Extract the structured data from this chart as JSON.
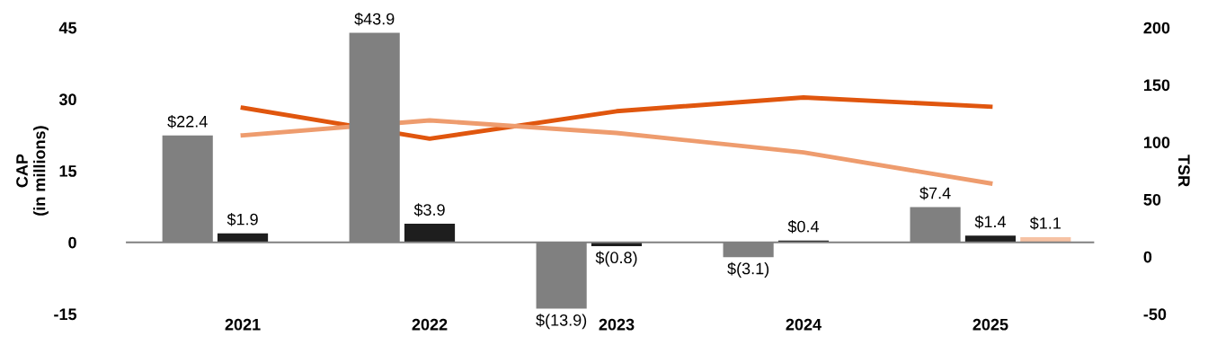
{
  "chart_data": {
    "type": "bar",
    "ylabel": "CAP\n(in millions)",
    "y2label": "TSR",
    "categories": [
      "2021",
      "2022",
      "2023",
      "2024",
      "2025"
    ],
    "ylim": [
      -15,
      45
    ],
    "yticks": [
      -15,
      0,
      15,
      30,
      45
    ],
    "y2lim": [
      -50,
      200
    ],
    "y2ticks": [
      -50,
      0,
      50,
      100,
      150,
      200
    ],
    "legend": false,
    "series": [
      {
        "color": "#808080",
        "values": [
          22.4,
          43.9,
          -13.9,
          -3.1,
          7.4
        ],
        "value_labels": [
          "$22.4",
          "$43.9",
          "$(13.9)",
          "$(3.1)",
          "$7.4"
        ]
      },
      {
        "color": "#1e1e1e",
        "values": [
          1.9,
          3.9,
          -0.8,
          0.4,
          1.4
        ],
        "value_labels": [
          "$1.9",
          "$3.9",
          "$(0.8)",
          "$0.4",
          "$1.4"
        ]
      },
      {
        "color": "#f6c2a4",
        "values": [
          null,
          null,
          null,
          null,
          1.1
        ],
        "value_labels": [
          null,
          null,
          null,
          null,
          "$1.1"
        ]
      },
      {
        "type": "line",
        "axis": "y2",
        "color": "#e0560e",
        "values": [
          130,
          103,
          127,
          139,
          131
        ]
      },
      {
        "type": "line",
        "axis": "y2",
        "color": "#ee9c6e",
        "values": [
          106,
          119,
          108,
          91,
          64
        ]
      }
    ]
  }
}
